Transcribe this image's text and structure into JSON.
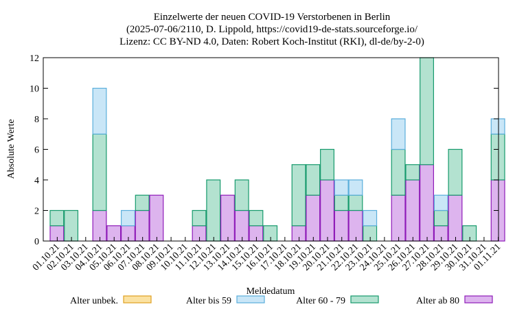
{
  "chart_data": {
    "type": "bar",
    "stacked": true,
    "title": [
      "Einzelwerte der neuen COVID-19 Verstorbenen in Berlin",
      "(2025-07-06/2110, D. Lippold, https://covid19-de-stats.sourceforge.io/",
      "Lizenz: CC BY-ND 4.0, Daten: Robert Koch-Institut (RKI), dl-de/by-2-0)"
    ],
    "xlabel": "Meldedatum",
    "ylabel": "Absolute Werte",
    "ylim": [
      0,
      12
    ],
    "yticks": [
      0,
      2,
      4,
      6,
      8,
      10,
      12
    ],
    "legend_position": "bottom",
    "categories": [
      "01.10.21",
      "02.10.21",
      "03.10.21",
      "04.10.21",
      "05.10.21",
      "06.10.21",
      "07.10.21",
      "08.10.21",
      "09.10.21",
      "10.10.21",
      "11.10.21",
      "12.10.21",
      "13.10.21",
      "14.10.21",
      "15.10.21",
      "16.10.21",
      "17.10.21",
      "18.10.21",
      "19.10.21",
      "20.10.21",
      "21.10.21",
      "22.10.21",
      "23.10.21",
      "24.10.21",
      "25.10.21",
      "26.10.21",
      "27.10.21",
      "28.10.21",
      "29.10.21",
      "30.10.21",
      "31.10.21",
      "01.11.21"
    ],
    "series": [
      {
        "name": "Alter ab 80",
        "fill": "#ddb4ee",
        "stroke": "#8e1ab8",
        "values": [
          1,
          0,
          0,
          2,
          1,
          1,
          2,
          3,
          0,
          0,
          1,
          0,
          3,
          2,
          1,
          0,
          0,
          1,
          3,
          4,
          2,
          2,
          0,
          0,
          3,
          4,
          5,
          1,
          3,
          0,
          0,
          4
        ]
      },
      {
        "name": "Alter 60 - 79",
        "fill": "#b3e2d0",
        "stroke": "#169a6c",
        "values": [
          1,
          2,
          0,
          5,
          0,
          0,
          1,
          0,
          0,
          0,
          1,
          4,
          0,
          2,
          1,
          1,
          0,
          4,
          2,
          2,
          1,
          1,
          1,
          0,
          3,
          1,
          7,
          1,
          3,
          1,
          0,
          3
        ]
      },
      {
        "name": "Alter bis 59",
        "fill": "#c9e6f7",
        "stroke": "#5aaedb",
        "values": [
          0,
          0,
          0,
          3,
          0,
          1,
          0,
          0,
          0,
          0,
          0,
          0,
          0,
          0,
          0,
          0,
          0,
          0,
          0,
          0,
          1,
          1,
          1,
          0,
          2,
          0,
          0,
          1,
          0,
          0,
          0,
          1
        ]
      },
      {
        "name": "Alter unbek.",
        "fill": "#fbe2a2",
        "stroke": "#e0a020",
        "values": [
          0,
          0,
          0,
          0,
          0,
          0,
          0,
          0,
          0,
          0,
          0,
          0,
          0,
          0,
          0,
          0,
          0,
          0,
          0,
          0,
          0,
          0,
          0,
          0,
          0,
          0,
          0,
          0,
          0,
          0,
          0,
          0
        ]
      }
    ],
    "legend_order": [
      "Alter unbek.",
      "Alter bis 59",
      "Alter 60 - 79",
      "Alter ab 80"
    ]
  }
}
